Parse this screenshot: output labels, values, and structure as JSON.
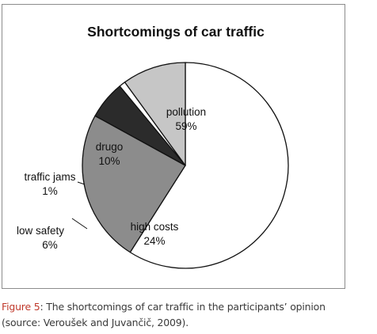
{
  "chart_data": {
    "type": "pie",
    "title": "Shortcomings of car traffic",
    "start_angle_deg": 0,
    "direction": "clockwise",
    "slices": [
      {
        "label": "pollution",
        "value_label": "59%",
        "value": 59,
        "color": "#ffffff"
      },
      {
        "label": "high costs",
        "value_label": "24%",
        "value": 24,
        "color": "#8c8c8c"
      },
      {
        "label": "low safety",
        "value_label": "6%",
        "value": 6,
        "color": "#2b2b2b"
      },
      {
        "label": "traffic jams",
        "value_label": "1%",
        "value": 1,
        "color": "#ffffff"
      },
      {
        "label": "drugo",
        "value_label": "10%",
        "value": 10,
        "color": "#c6c6c6"
      }
    ],
    "legend": "none"
  },
  "caption": {
    "label": "Figure",
    "number": "5",
    "line1": ": The shortcomings of car traffic in the participants’ opinion",
    "line2": "(source: Veroušek and Juvančič, 2009)."
  }
}
